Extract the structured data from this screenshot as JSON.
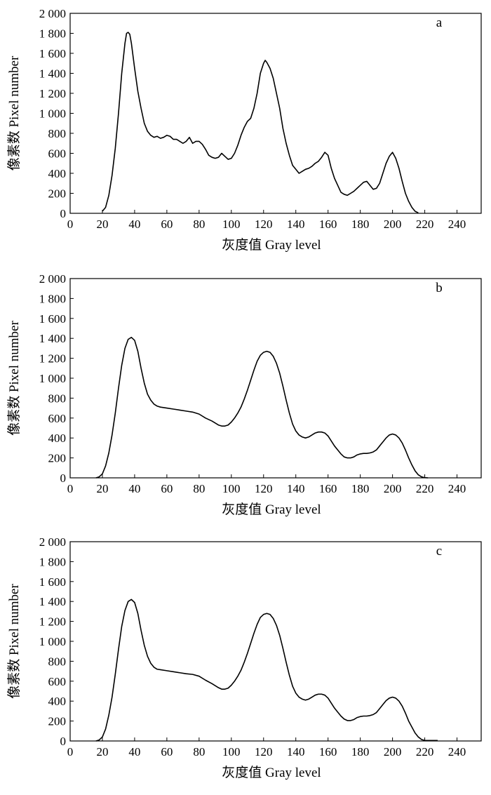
{
  "figure": {
    "xlabel": "灰度值 Gray level",
    "ylabel": "像素数 Pixel number",
    "line_color": "#000000",
    "background": "#ffffff"
  },
  "chart_data": [
    {
      "type": "line",
      "panel": "a",
      "xlabel": "灰度值 Gray level",
      "ylabel": "像素数 Pixel number",
      "xlim": [
        0,
        255
      ],
      "ylim": [
        0,
        2000
      ],
      "xticks": [
        0,
        20,
        40,
        60,
        80,
        100,
        120,
        140,
        160,
        180,
        200,
        220,
        240
      ],
      "yticks": [
        0,
        200,
        400,
        600,
        800,
        1000,
        1200,
        1400,
        1600,
        1800,
        2000
      ],
      "ytick_labels": [
        "0",
        "200",
        "400",
        "600",
        "800",
        "1 000",
        "1 200",
        "1 400",
        "1 600",
        "1 800",
        "2 000"
      ],
      "grid": false,
      "series": [
        {
          "x": [
            20,
            22,
            24,
            26,
            28,
            30,
            32,
            34,
            35,
            36,
            37,
            38,
            40,
            42,
            44,
            46,
            48,
            50,
            52,
            54,
            56,
            58,
            60,
            62,
            64,
            66,
            68,
            70,
            72,
            74,
            76,
            78,
            80,
            82,
            84,
            86,
            88,
            90,
            92,
            94,
            96,
            98,
            100,
            102,
            104,
            106,
            108,
            110,
            112,
            114,
            116,
            118,
            120,
            121,
            122,
            124,
            126,
            128,
            130,
            132,
            134,
            136,
            138,
            140,
            142,
            144,
            146,
            148,
            150,
            152,
            154,
            156,
            158,
            160,
            162,
            164,
            166,
            168,
            170,
            172,
            174,
            176,
            178,
            180,
            182,
            184,
            186,
            188,
            190,
            192,
            194,
            196,
            198,
            200,
            202,
            204,
            206,
            208,
            210,
            212,
            214,
            216
          ],
          "y": [
            20,
            60,
            180,
            380,
            650,
            1000,
            1400,
            1700,
            1800,
            1810,
            1790,
            1700,
            1450,
            1220,
            1050,
            900,
            820,
            780,
            760,
            770,
            750,
            760,
            780,
            770,
            740,
            740,
            720,
            700,
            720,
            760,
            700,
            720,
            720,
            690,
            640,
            580,
            560,
            550,
            560,
            600,
            570,
            540,
            550,
            600,
            680,
            780,
            860,
            920,
            950,
            1050,
            1200,
            1400,
            1500,
            1530,
            1510,
            1450,
            1350,
            1200,
            1050,
            850,
            700,
            580,
            480,
            440,
            400,
            420,
            440,
            450,
            470,
            500,
            520,
            560,
            610,
            580,
            450,
            350,
            280,
            210,
            190,
            180,
            200,
            220,
            250,
            280,
            310,
            320,
            280,
            240,
            250,
            300,
            400,
            500,
            570,
            610,
            550,
            450,
            320,
            200,
            120,
            60,
            20,
            5
          ]
        }
      ]
    },
    {
      "type": "line",
      "panel": "b",
      "xlabel": "灰度值 Gray level",
      "ylabel": "像素数 Pixel number",
      "xlim": [
        0,
        255
      ],
      "ylim": [
        0,
        2000
      ],
      "xticks": [
        0,
        20,
        40,
        60,
        80,
        100,
        120,
        140,
        160,
        180,
        200,
        220,
        240
      ],
      "yticks": [
        0,
        200,
        400,
        600,
        800,
        1000,
        1200,
        1400,
        1600,
        1800,
        2000
      ],
      "ytick_labels": [
        "0",
        "200",
        "400",
        "600",
        "800",
        "1 000",
        "1 200",
        "1 400",
        "1 600",
        "1 800",
        "2 000"
      ],
      "grid": false,
      "series": [
        {
          "x": [
            16,
            18,
            20,
            22,
            24,
            26,
            28,
            30,
            32,
            34,
            36,
            38,
            40,
            42,
            44,
            46,
            48,
            50,
            52,
            54,
            56,
            60,
            64,
            68,
            72,
            76,
            80,
            84,
            88,
            92,
            94,
            96,
            98,
            100,
            102,
            104,
            106,
            108,
            110,
            112,
            114,
            116,
            118,
            120,
            122,
            124,
            126,
            128,
            130,
            132,
            134,
            136,
            138,
            140,
            142,
            144,
            146,
            148,
            150,
            152,
            154,
            156,
            158,
            160,
            162,
            164,
            166,
            168,
            170,
            172,
            174,
            176,
            178,
            180,
            182,
            184,
            186,
            188,
            190,
            192,
            194,
            196,
            198,
            200,
            202,
            204,
            206,
            208,
            210,
            212,
            214,
            216,
            218,
            220,
            222
          ],
          "y": [
            0,
            10,
            40,
            120,
            250,
            430,
            650,
            900,
            1130,
            1300,
            1390,
            1410,
            1380,
            1270,
            1100,
            950,
            840,
            780,
            740,
            720,
            710,
            700,
            690,
            680,
            670,
            660,
            640,
            600,
            570,
            530,
            520,
            520,
            530,
            560,
            600,
            650,
            710,
            790,
            880,
            980,
            1080,
            1170,
            1230,
            1260,
            1270,
            1260,
            1220,
            1150,
            1050,
            920,
            780,
            650,
            540,
            470,
            430,
            410,
            400,
            410,
            430,
            450,
            460,
            460,
            450,
            420,
            370,
            320,
            280,
            240,
            210,
            200,
            200,
            210,
            230,
            240,
            245,
            245,
            250,
            260,
            280,
            320,
            360,
            400,
            430,
            440,
            430,
            400,
            350,
            280,
            200,
            130,
            70,
            30,
            10,
            2,
            0
          ]
        }
      ]
    },
    {
      "type": "line",
      "panel": "c",
      "xlabel": "灰度值 Gray level",
      "ylabel": "像素数 Pixel number",
      "xlim": [
        0,
        255
      ],
      "ylim": [
        0,
        2000
      ],
      "xticks": [
        0,
        20,
        40,
        60,
        80,
        100,
        120,
        140,
        160,
        180,
        200,
        220,
        240
      ],
      "yticks": [
        0,
        200,
        400,
        600,
        800,
        1000,
        1200,
        1400,
        1600,
        1800,
        2000
      ],
      "ytick_labels": [
        "0",
        "200",
        "400",
        "600",
        "800",
        "1 000",
        "1 200",
        "1 400",
        "1 600",
        "1 800",
        "2 000"
      ],
      "grid": false,
      "series": [
        {
          "x": [
            16,
            18,
            20,
            22,
            24,
            26,
            28,
            30,
            32,
            34,
            36,
            38,
            40,
            42,
            44,
            46,
            48,
            50,
            52,
            54,
            56,
            60,
            64,
            68,
            72,
            76,
            80,
            84,
            88,
            92,
            94,
            96,
            98,
            100,
            102,
            104,
            106,
            108,
            110,
            112,
            114,
            116,
            118,
            120,
            122,
            124,
            126,
            128,
            130,
            132,
            134,
            136,
            138,
            140,
            142,
            144,
            146,
            148,
            150,
            152,
            154,
            156,
            158,
            160,
            162,
            164,
            166,
            168,
            170,
            172,
            174,
            176,
            178,
            180,
            182,
            184,
            186,
            188,
            190,
            192,
            194,
            196,
            198,
            200,
            202,
            204,
            206,
            208,
            210,
            212,
            214,
            216,
            218,
            220,
            224,
            228
          ],
          "y": [
            0,
            10,
            40,
            120,
            260,
            440,
            670,
            920,
            1150,
            1310,
            1400,
            1420,
            1390,
            1280,
            1110,
            960,
            850,
            780,
            740,
            720,
            715,
            705,
            695,
            685,
            675,
            668,
            650,
            610,
            575,
            535,
            520,
            520,
            530,
            560,
            600,
            650,
            710,
            790,
            880,
            980,
            1080,
            1170,
            1240,
            1270,
            1280,
            1270,
            1230,
            1160,
            1060,
            930,
            790,
            660,
            550,
            480,
            440,
            420,
            410,
            420,
            440,
            460,
            470,
            470,
            460,
            430,
            380,
            330,
            290,
            250,
            220,
            205,
            205,
            215,
            235,
            245,
            250,
            250,
            255,
            265,
            285,
            325,
            365,
            405,
            430,
            440,
            430,
            400,
            350,
            280,
            200,
            140,
            80,
            40,
            15,
            5,
            5,
            5
          ]
        }
      ]
    }
  ]
}
